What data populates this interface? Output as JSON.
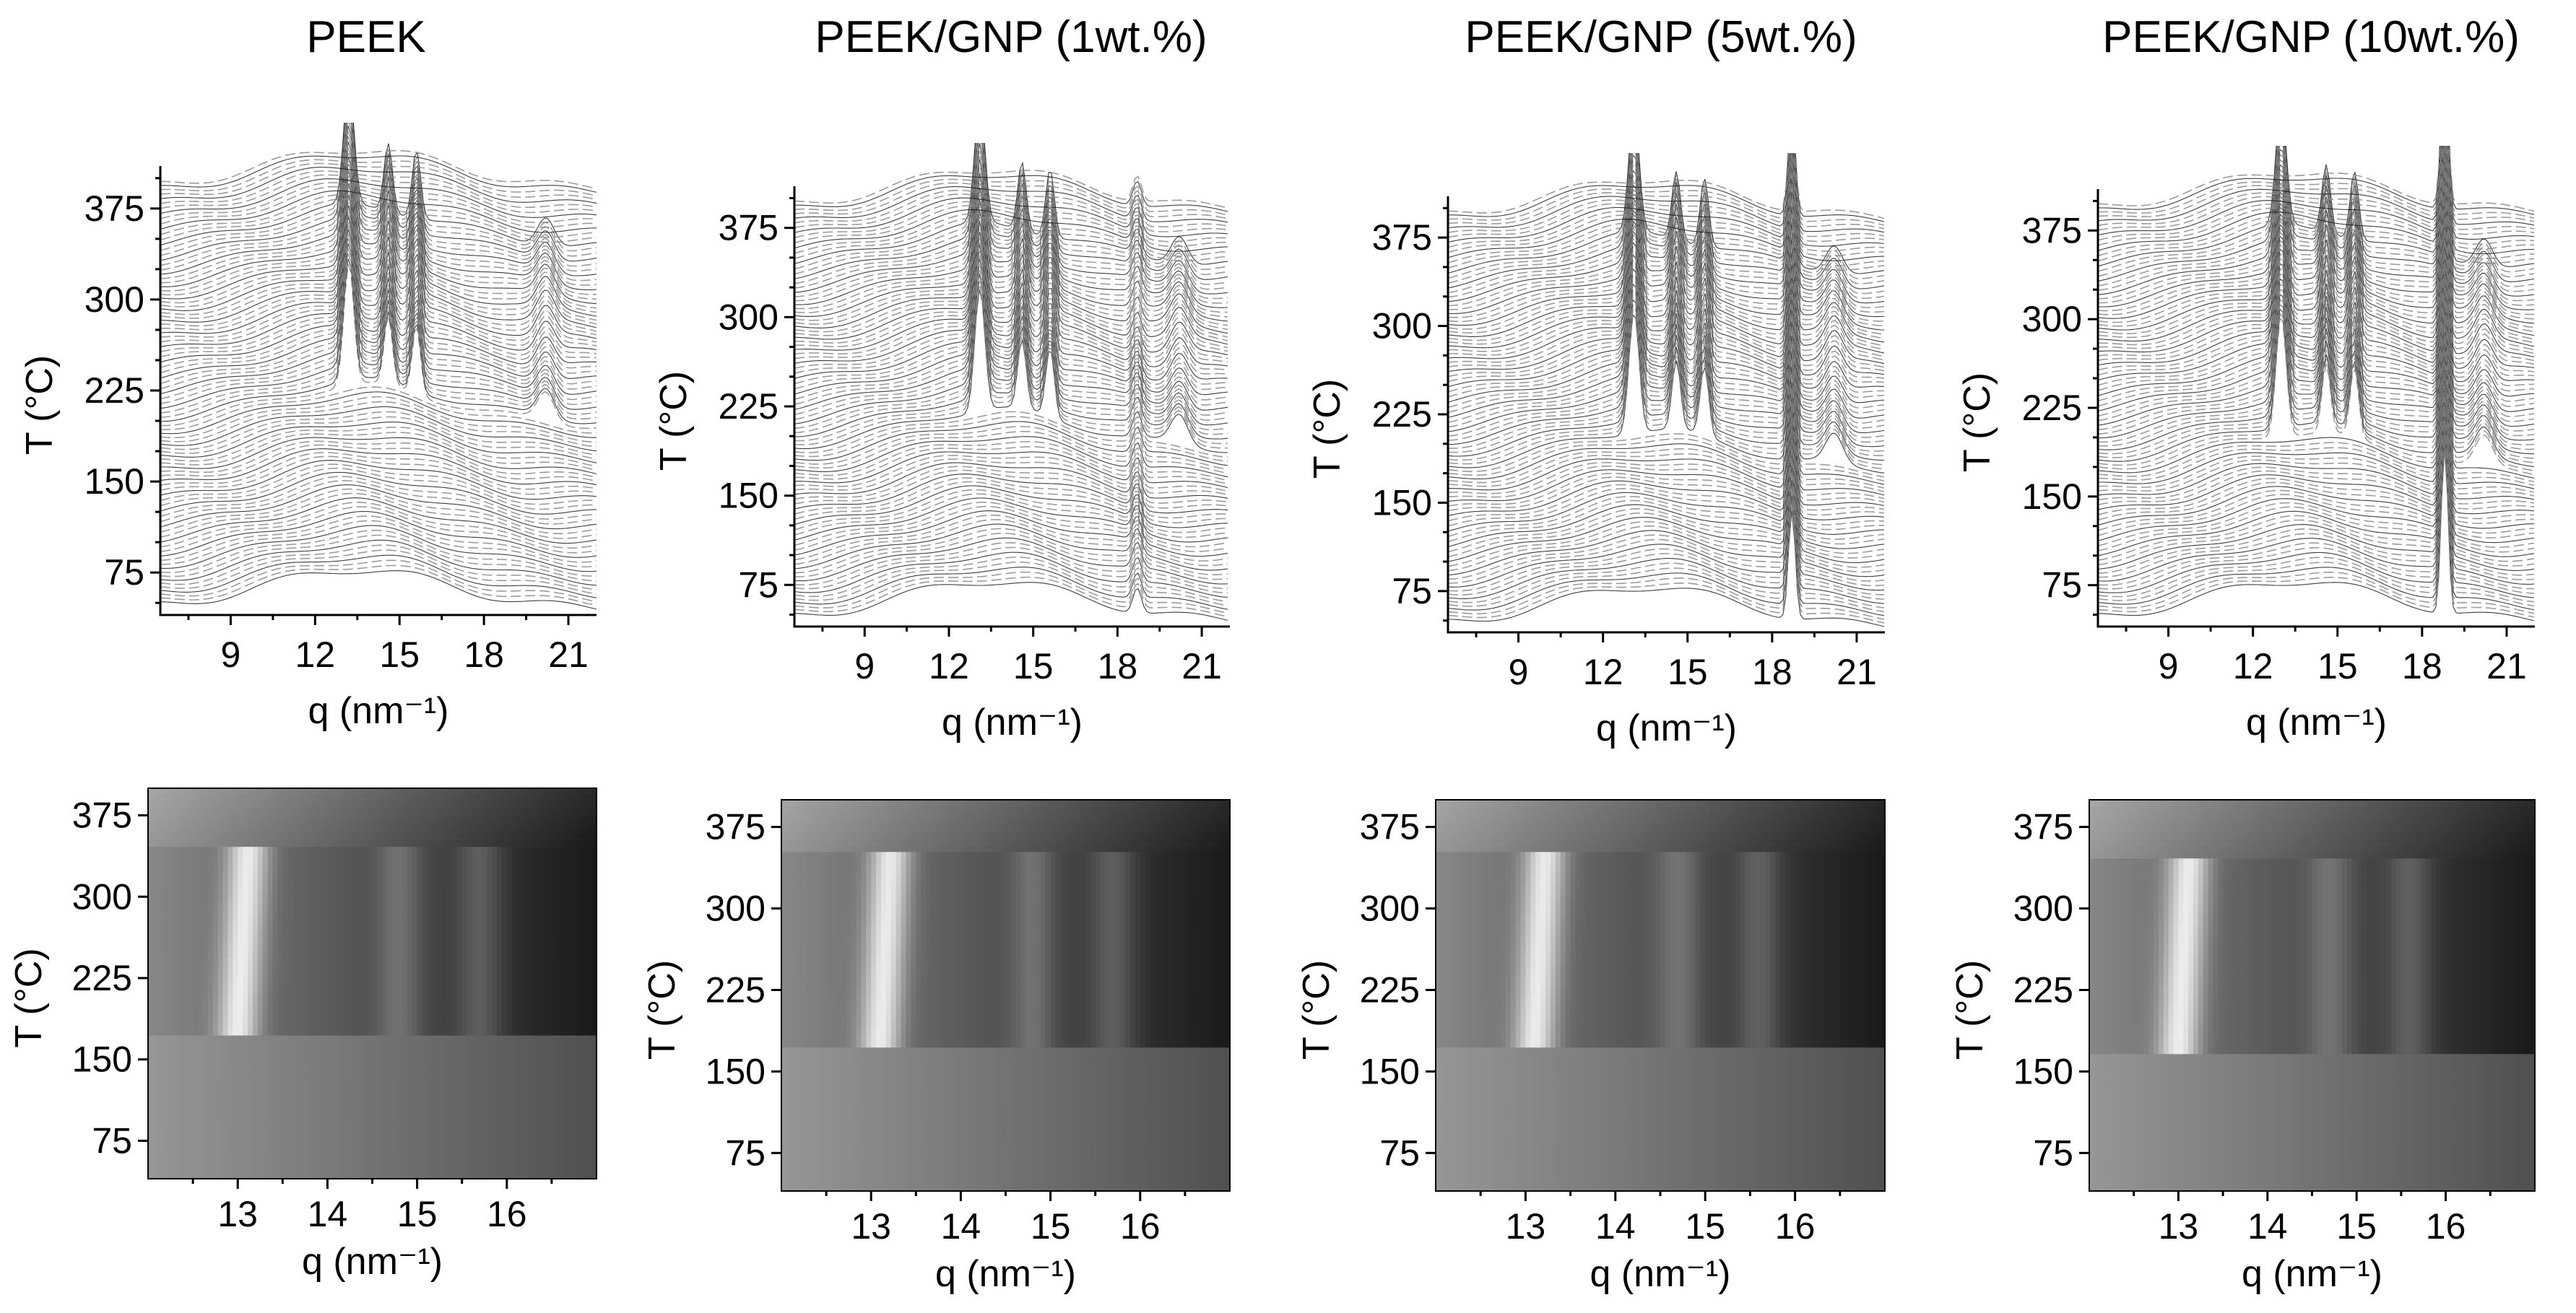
{
  "chart_data": [
    {
      "type": "line",
      "panel": "waterfall",
      "title": "PEEK",
      "xlabel": "q (nm⁻¹)",
      "ylabel": "T (°C)",
      "xticks": [
        "9",
        "12",
        "15",
        "18",
        "21"
      ],
      "yticks": [
        "75",
        "150",
        "225",
        "300",
        "375"
      ],
      "xlim": [
        6.5,
        22
      ],
      "ylim": [
        40,
        410
      ],
      "grid": false,
      "series": [
        {
          "peak_q": [
            13.2,
            14.6,
            15.6,
            20.2
          ],
          "strong_peak_q": 13.2,
          "peaks_appear_above_T": 195,
          "melt_T": 345
        }
      ]
    },
    {
      "type": "line",
      "panel": "waterfall",
      "title": "PEEK/GNP (1wt.%)",
      "xlabel": "q (nm⁻¹)",
      "ylabel": "T (°C)",
      "xticks": [
        "9",
        "12",
        "15",
        "18",
        "21"
      ],
      "yticks": [
        "75",
        "150",
        "225",
        "300",
        "375"
      ],
      "xlim": [
        6.5,
        22
      ],
      "ylim": [
        40,
        410
      ],
      "grid": false,
      "series": [
        {
          "peak_q": [
            13.1,
            14.6,
            15.6,
            18.7,
            20.2
          ],
          "strong_peak_q": 13.1,
          "peaks_appear_above_T": 185,
          "melt_T": 345
        }
      ]
    },
    {
      "type": "line",
      "panel": "waterfall",
      "title": "PEEK/GNP (5wt.%)",
      "xlabel": "q (nm⁻¹)",
      "ylabel": "T (°C)",
      "xticks": [
        "9",
        "12",
        "15",
        "18",
        "21"
      ],
      "yticks": [
        "75",
        "150",
        "225",
        "300",
        "375"
      ],
      "xlim": [
        6.5,
        22
      ],
      "ylim": [
        40,
        410
      ],
      "grid": false,
      "series": [
        {
          "peak_q": [
            13.1,
            14.6,
            15.5,
            18.7,
            20.2
          ],
          "strong_peak_q": 13.1,
          "gnp_peak_q": 18.7,
          "peaks_appear_above_T": 175,
          "melt_T": 345
        }
      ]
    },
    {
      "type": "line",
      "panel": "waterfall",
      "title": "PEEK/GNP (10wt.%)",
      "xlabel": "q (nm⁻¹)",
      "ylabel": "T (°C)",
      "xticks": [
        "9",
        "12",
        "15",
        "18",
        "21"
      ],
      "yticks": [
        "75",
        "150",
        "225",
        "300",
        "375"
      ],
      "xlim": [
        6.5,
        22
      ],
      "ylim": [
        40,
        410
      ],
      "grid": false,
      "series": [
        {
          "peak_q": [
            13.0,
            14.5,
            15.5,
            18.8,
            20.2
          ],
          "strong_peak_q": 13.0,
          "gnp_peak_q": 18.8,
          "peaks_appear_above_T": 170,
          "melt_T": 345
        }
      ]
    },
    {
      "type": "heatmap",
      "panel": "contour",
      "xlabel": "q (nm⁻¹)",
      "ylabel": "T (°C)",
      "xticks": [
        "13",
        "14",
        "15",
        "16"
      ],
      "yticks": [
        "75",
        "150",
        "225",
        "300",
        "375"
      ],
      "xlim": [
        12.0,
        17.0
      ],
      "ylim": [
        40,
        400
      ],
      "colormap": "grayscale",
      "series": [
        {
          "peak_q": [
            13.0,
            14.8,
            15.7
          ],
          "crystalline_T_range": [
            175,
            345
          ]
        }
      ]
    },
    {
      "type": "heatmap",
      "panel": "contour",
      "xlabel": "q (nm⁻¹)",
      "ylabel": "T (°C)",
      "xticks": [
        "13",
        "14",
        "15",
        "16"
      ],
      "yticks": [
        "75",
        "150",
        "225",
        "300",
        "375"
      ],
      "xlim": [
        12.0,
        17.0
      ],
      "ylim": [
        40,
        400
      ],
      "colormap": "grayscale",
      "series": [
        {
          "peak_q": [
            13.1,
            14.8,
            15.7
          ],
          "crystalline_T_range": [
            175,
            350
          ]
        }
      ]
    },
    {
      "type": "heatmap",
      "panel": "contour",
      "xlabel": "q (nm⁻¹)",
      "ylabel": "T (°C)",
      "xticks": [
        "13",
        "14",
        "15",
        "16"
      ],
      "yticks": [
        "75",
        "150",
        "225",
        "300",
        "375"
      ],
      "xlim": [
        12.0,
        17.0
      ],
      "ylim": [
        40,
        400
      ],
      "colormap": "grayscale",
      "series": [
        {
          "peak_q": [
            13.1,
            14.7,
            15.6
          ],
          "crystalline_T_range": [
            170,
            350
          ]
        }
      ]
    },
    {
      "type": "heatmap",
      "panel": "contour",
      "xlabel": "q (nm⁻¹)",
      "ylabel": "T (°C)",
      "xticks": [
        "13",
        "14",
        "15",
        "16"
      ],
      "yticks": [
        "75",
        "150",
        "225",
        "300",
        "375"
      ],
      "xlim": [
        12.0,
        17.0
      ],
      "ylim": [
        40,
        400
      ],
      "colormap": "grayscale",
      "series": [
        {
          "peak_q": [
            13.0,
            14.7,
            15.6
          ],
          "crystalline_T_range": [
            165,
            345
          ]
        }
      ]
    }
  ]
}
